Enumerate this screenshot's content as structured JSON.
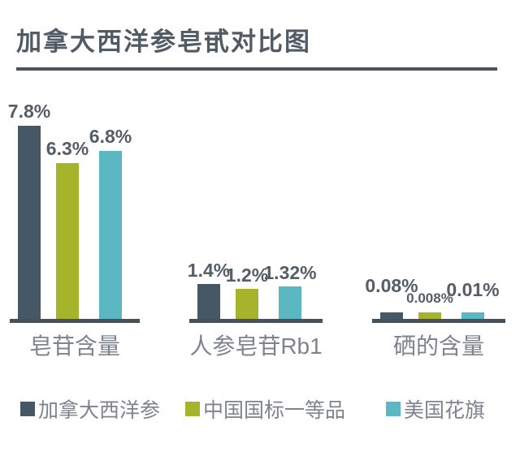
{
  "title": "加拿大西洋参皂甙对比图",
  "chart_data": {
    "type": "bar",
    "title": "加拿大西洋参皂甙对比图",
    "unit": "%",
    "categories": [
      "皂苷含量",
      "人参皂苷Rb1",
      "硒的含量"
    ],
    "series": [
      {
        "name": "加拿大西洋参",
        "color": "#465766",
        "values": [
          7.8,
          1.4,
          0.08
        ]
      },
      {
        "name": "中国国标一等品",
        "color": "#a6b42c",
        "values": [
          6.3,
          1.2,
          0.008
        ]
      },
      {
        "name": "美国花旗",
        "color": "#5bb7c1",
        "values": [
          6.8,
          1.32,
          0.01
        ]
      }
    ],
    "value_labels": [
      [
        "7.8%",
        "6.3%",
        "6.8%"
      ],
      [
        "1.4%",
        "1.2%",
        "1.32%"
      ],
      [
        "0.08%",
        "0.008%",
        "0.01%"
      ]
    ],
    "legend_position": "bottom",
    "grid": false,
    "ylim": [
      0,
      8
    ]
  },
  "colors": {
    "title_text": "#515b65",
    "rule": "#4a545c",
    "axis": "#47515a",
    "value_label": "#555d66",
    "category_label": "#7e848d",
    "legend_text": "#7e848d",
    "background": "#ffffff"
  }
}
